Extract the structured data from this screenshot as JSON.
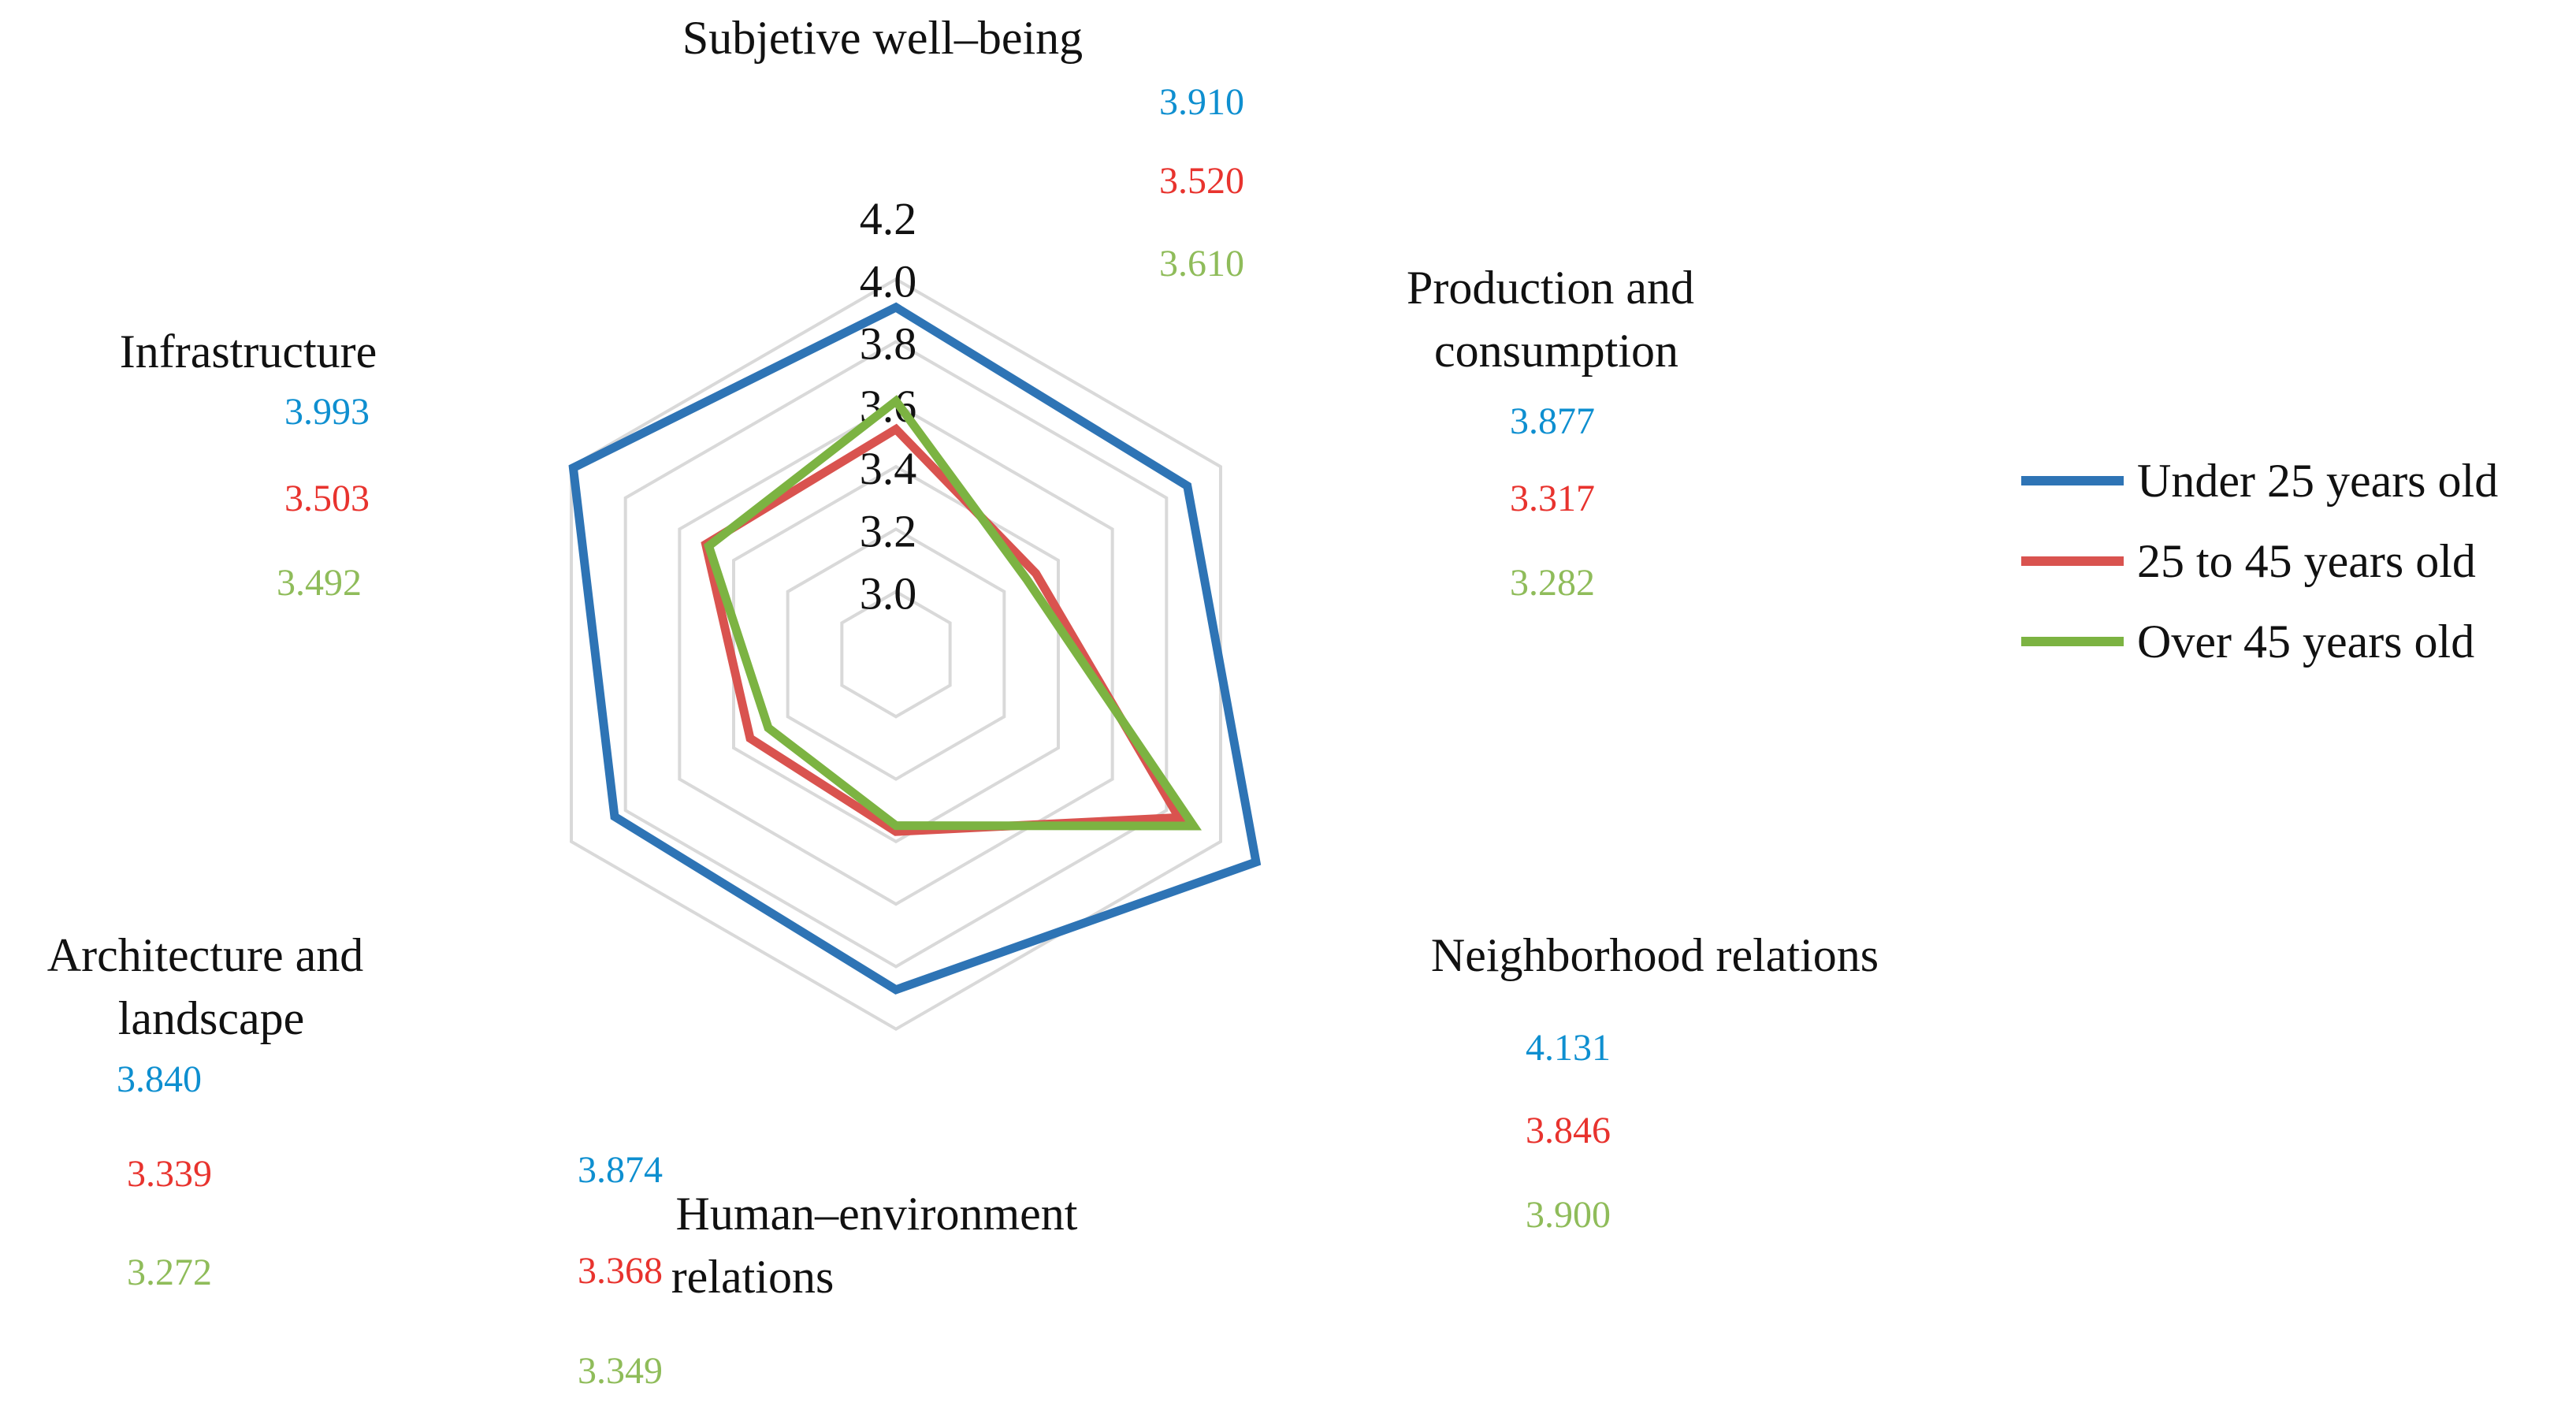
{
  "chart_data": {
    "type": "radar",
    "title": "",
    "axes": [
      "Subjetive well–being",
      "Production and consumption",
      "Neighborhood relations",
      "Human–environment relations",
      "Architecture and landscape",
      "Infrastructure"
    ],
    "ticks": [
      "3.0",
      "3.2",
      "3.4",
      "3.6",
      "3.8",
      "4.0",
      "4.2"
    ],
    "tick_values": [
      3.0,
      3.2,
      3.4,
      3.6,
      3.8,
      4.0,
      4.2
    ],
    "range": [
      2.8,
      4.2
    ],
    "series": [
      {
        "name": "Under 25 years old",
        "color": "#2e74b5",
        "values": [
          3.91,
          3.877,
          4.131,
          3.874,
          3.84,
          3.993
        ],
        "labels": [
          "3.910",
          "3.877",
          "4.131",
          "3.874",
          "3.840",
          "3.993"
        ]
      },
      {
        "name": "25 to 45 years old",
        "color": "#d9534f",
        "values": [
          3.52,
          3.317,
          3.846,
          3.368,
          3.339,
          3.503
        ],
        "labels": [
          "3.520",
          "3.317",
          "3.846",
          "3.368",
          "3.339",
          "3.503"
        ]
      },
      {
        "name": "Over 45 years old",
        "color": "#7cb342",
        "values": [
          3.61,
          3.282,
          3.9,
          3.349,
          3.272,
          3.492
        ],
        "labels": [
          "3.610",
          "3.282",
          "3.900",
          "3.349",
          "3.272",
          "3.492"
        ]
      }
    ],
    "label_colors": [
      "#0e8fd0",
      "#e8332e",
      "#8fbc5a"
    ],
    "grid": true,
    "legend_position": "right"
  }
}
